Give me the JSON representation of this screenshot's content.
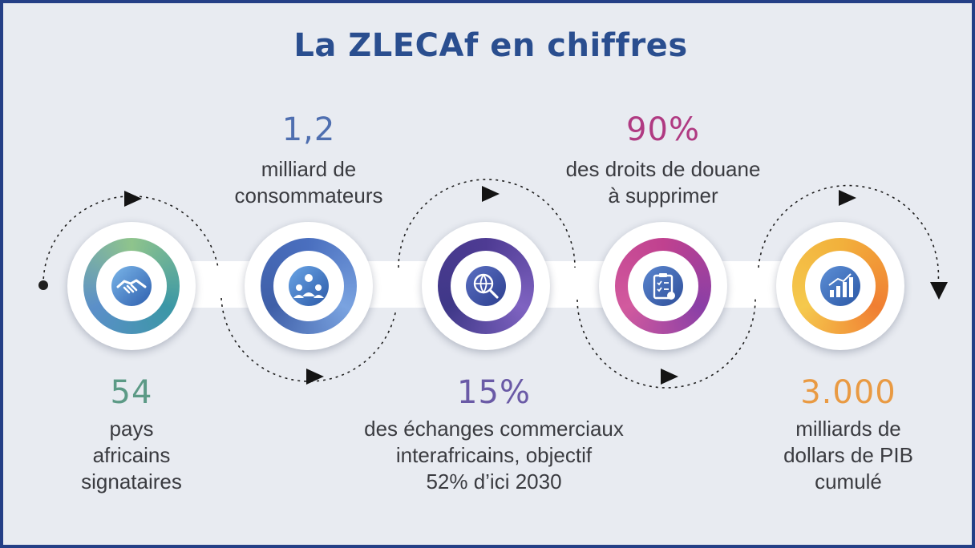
{
  "title": "La ZLECAf en chiffres",
  "colors": {
    "title": "#2a4e8f",
    "green": "#5c9a86",
    "blue": "#4f6fb0",
    "purple": "#6a5aa6",
    "magenta": "#b03a82",
    "orange": "#e99a43",
    "background": "#e8ebf1",
    "border": "#243f86"
  },
  "stats": [
    {
      "number": "54",
      "lines": [
        "pays",
        "africains",
        "signataires"
      ],
      "icon": "handshake-icon"
    },
    {
      "number": "1,2",
      "lines": [
        "milliard de",
        "consommateurs"
      ],
      "icon": "people-network-icon"
    },
    {
      "number": "15%",
      "lines": [
        "des échanges commerciaux",
        "interafricains, objectif",
        "52% d’ici 2030"
      ],
      "icon": "globe-search-icon"
    },
    {
      "number": "90%",
      "lines": [
        "des droits de douane",
        "à supprimer"
      ],
      "icon": "clipboard-checklist-icon"
    },
    {
      "number": "3.000",
      "lines": [
        "milliards de",
        "dollars de PIB",
        "cumulé"
      ],
      "icon": "growth-chart-icon"
    }
  ]
}
